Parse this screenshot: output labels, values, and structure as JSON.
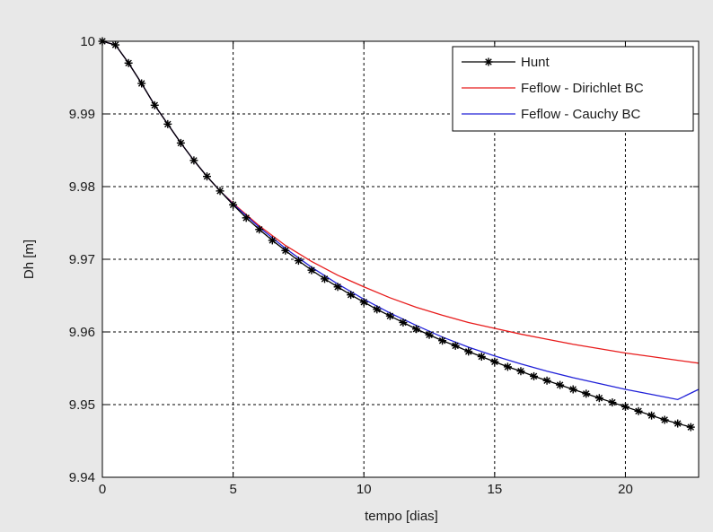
{
  "chart_data": {
    "type": "line",
    "title": "",
    "xlabel": "tempo [dias]",
    "ylabel": "Dh [m]",
    "xlim": [
      0,
      22.8
    ],
    "ylim": [
      9.94,
      10.0
    ],
    "xticks": [
      0,
      5,
      10,
      15,
      20
    ],
    "xtick_labels": [
      "0",
      "5",
      "10",
      "15",
      "20"
    ],
    "yticks": [
      9.94,
      9.95,
      9.96,
      9.97,
      9.98,
      9.99,
      10.0
    ],
    "ytick_labels": [
      "9.94",
      "9.95",
      "9.96",
      "9.97",
      "9.98",
      "9.99",
      "10"
    ],
    "grid": true,
    "grid_style": "dashed",
    "legend_position": "top-right",
    "series": [
      {
        "name": "Hunt",
        "color": "#000000",
        "marker": "asterisk",
        "x": [
          0,
          0.5,
          1.0,
          1.5,
          2.0,
          2.5,
          3.0,
          3.5,
          4.0,
          4.5,
          5.0,
          5.5,
          6.0,
          6.5,
          7.0,
          7.5,
          8.0,
          8.5,
          9.0,
          9.5,
          10.0,
          10.5,
          11.0,
          11.5,
          12.0,
          12.5,
          13.0,
          13.5,
          14.0,
          14.5,
          15.0,
          15.5,
          16.0,
          16.5,
          17.0,
          17.5,
          18.0,
          18.5,
          19.0,
          19.5,
          20.0,
          20.5,
          21.0,
          21.5,
          22.0,
          22.5
        ],
        "y": [
          10.0,
          9.9995,
          9.997,
          9.9942,
          9.9912,
          9.9886,
          9.986,
          9.9836,
          9.9814,
          9.9794,
          9.9775,
          9.9757,
          9.9741,
          9.9726,
          9.9712,
          9.9698,
          9.9685,
          9.9673,
          9.9662,
          9.9651,
          9.9641,
          9.9631,
          9.9622,
          9.9613,
          9.9604,
          9.9596,
          9.9588,
          9.9581,
          9.9573,
          9.9566,
          9.9559,
          9.9552,
          9.9546,
          9.9539,
          9.9533,
          9.9527,
          9.9521,
          9.9515,
          9.9509,
          9.9503,
          9.9497,
          9.9491,
          9.9485,
          9.9479,
          9.9474,
          9.9469
        ]
      },
      {
        "name": "Feflow - Dirichlet BC",
        "color": "#e81c1c",
        "marker": "none",
        "x": [
          0,
          0.5,
          1.0,
          1.5,
          2.0,
          2.5,
          3.0,
          3.5,
          4.0,
          4.5,
          5.0,
          6.0,
          7.0,
          8.0,
          9.0,
          10.0,
          11.0,
          12.0,
          13.0,
          14.0,
          15.0,
          16.0,
          17.0,
          18.0,
          19.0,
          20.0,
          21.0,
          22.0,
          22.8
        ],
        "y": [
          10.0,
          9.9995,
          9.997,
          9.9942,
          9.9912,
          9.9886,
          9.986,
          9.9836,
          9.9814,
          9.9794,
          9.9777,
          9.9746,
          9.9719,
          9.9697,
          9.9678,
          9.9662,
          9.9647,
          9.9634,
          9.9623,
          9.9613,
          9.9605,
          9.9597,
          9.959,
          9.9583,
          9.9577,
          9.9571,
          9.9566,
          9.9561,
          9.9557
        ]
      },
      {
        "name": "Feflow - Cauchy BC",
        "color": "#2020d8",
        "marker": "none",
        "x": [
          0,
          0.5,
          1.0,
          1.5,
          2.0,
          2.5,
          3.0,
          3.5,
          4.0,
          4.5,
          5.0,
          6.0,
          7.0,
          8.0,
          9.0,
          10.0,
          11.0,
          12.0,
          13.0,
          14.0,
          15.0,
          16.0,
          17.0,
          18.0,
          19.0,
          20.0,
          21.0,
          22.0,
          22.8
        ],
        "y": [
          10.0,
          9.9995,
          9.997,
          9.9942,
          9.9912,
          9.9886,
          9.986,
          9.9836,
          9.9814,
          9.9794,
          9.9776,
          9.9744,
          9.9715,
          9.9689,
          9.9666,
          9.9645,
          9.9626,
          9.9609,
          9.9593,
          9.9579,
          9.9567,
          9.9556,
          9.9546,
          9.9537,
          9.9529,
          9.9521,
          9.9514,
          9.9507,
          9.9521
        ]
      }
    ]
  }
}
